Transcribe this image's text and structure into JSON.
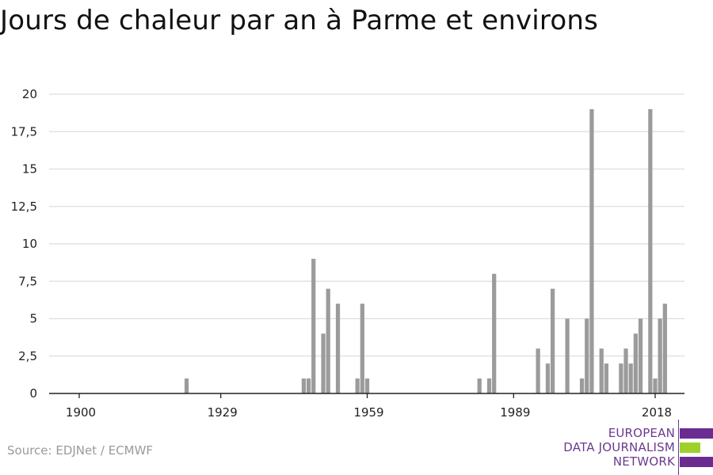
{
  "title": "Jours de chaleur par an à Parme et environs",
  "source": "Source: EDJNet / ECMWF",
  "logo": {
    "line1": "EUROPEAN",
    "line2": "DATA JOURNALISM",
    "line3": "NETWORK",
    "colors": {
      "purple": "#6b2c91",
      "green": "#9ed12a",
      "text": "#6b3a8f"
    }
  },
  "chart_data": {
    "type": "bar",
    "title": "Jours de chaleur par an à Parme et environs",
    "xlabel": "",
    "ylabel": "",
    "xlim": [
      1900,
      2018
    ],
    "ylim": [
      0,
      20
    ],
    "x_ticks": [
      {
        "value": 1900,
        "label": "1900"
      },
      {
        "value": 1929,
        "label": "1929"
      },
      {
        "value": 1959,
        "label": "1959"
      },
      {
        "value": 1989,
        "label": "1989"
      },
      {
        "value": 2018,
        "label": "2018"
      }
    ],
    "y_ticks": [
      {
        "value": 0,
        "label": "0"
      },
      {
        "value": 2.5,
        "label": "2,5"
      },
      {
        "value": 5,
        "label": "5"
      },
      {
        "value": 7.5,
        "label": "7,5"
      },
      {
        "value": 10,
        "label": "10"
      },
      {
        "value": 12.5,
        "label": "12,5"
      },
      {
        "value": 15,
        "label": "15"
      },
      {
        "value": 17.5,
        "label": "17,5"
      },
      {
        "value": 20,
        "label": "20"
      }
    ],
    "grid": true,
    "bar_color": "#9b9b9b",
    "points": [
      {
        "x": 1922,
        "y": 1
      },
      {
        "x": 1946,
        "y": 1
      },
      {
        "x": 1947,
        "y": 1
      },
      {
        "x": 1948,
        "y": 9
      },
      {
        "x": 1950,
        "y": 4
      },
      {
        "x": 1951,
        "y": 7
      },
      {
        "x": 1953,
        "y": 6
      },
      {
        "x": 1957,
        "y": 1
      },
      {
        "x": 1958,
        "y": 6
      },
      {
        "x": 1959,
        "y": 1
      },
      {
        "x": 1982,
        "y": 1
      },
      {
        "x": 1984,
        "y": 1
      },
      {
        "x": 1985,
        "y": 8
      },
      {
        "x": 1994,
        "y": 3
      },
      {
        "x": 1996,
        "y": 2
      },
      {
        "x": 1997,
        "y": 7
      },
      {
        "x": 2000,
        "y": 5
      },
      {
        "x": 2003,
        "y": 1
      },
      {
        "x": 2004,
        "y": 5
      },
      {
        "x": 2005,
        "y": 19
      },
      {
        "x": 2007,
        "y": 3
      },
      {
        "x": 2008,
        "y": 2
      },
      {
        "x": 2011,
        "y": 2
      },
      {
        "x": 2012,
        "y": 3
      },
      {
        "x": 2013,
        "y": 2
      },
      {
        "x": 2014,
        "y": 4
      },
      {
        "x": 2015,
        "y": 5
      },
      {
        "x": 2017,
        "y": 19
      },
      {
        "x": 2018,
        "y": 1
      },
      {
        "x": 2019,
        "y": 5
      },
      {
        "x": 2020,
        "y": 6
      }
    ]
  }
}
